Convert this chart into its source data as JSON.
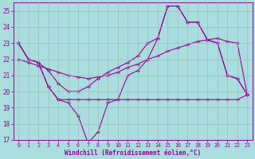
{
  "xlabel": "Windchill (Refroidissement éolien,°C)",
  "bg_color": "#aadddd",
  "grid_color": "#99bbbb",
  "line_color": "#990099",
  "xlim": [
    -0.5,
    23.5
  ],
  "ylim": [
    17,
    25.5
  ],
  "yticks": [
    17,
    18,
    19,
    20,
    21,
    22,
    23,
    24,
    25
  ],
  "xticks": [
    0,
    1,
    2,
    3,
    4,
    5,
    6,
    7,
    8,
    9,
    10,
    11,
    12,
    13,
    14,
    15,
    16,
    17,
    18,
    19,
    20,
    21,
    22,
    23
  ],
  "series_volatile_x": [
    0,
    1,
    2,
    3,
    4,
    5,
    6,
    7,
    8,
    9,
    10,
    11,
    12,
    13,
    14,
    15,
    16,
    17,
    18,
    19,
    20,
    21,
    22,
    23
  ],
  "series_volatile_y": [
    23,
    22,
    21.8,
    20.3,
    19.5,
    19.3,
    18.5,
    16.8,
    17.5,
    19.3,
    19.5,
    21.0,
    21.3,
    22.0,
    23.3,
    25.3,
    25.3,
    24.3,
    24.3,
    23.2,
    23.0,
    21.0,
    20.8,
    19.8
  ],
  "series_peak_x": [
    0,
    1,
    2,
    3,
    4,
    5,
    6,
    7,
    8,
    9,
    10,
    11,
    12,
    13,
    14,
    15,
    16,
    17,
    18,
    19,
    20,
    21,
    22,
    23
  ],
  "series_peak_y": [
    23,
    22,
    21.8,
    21.3,
    20.5,
    20.0,
    20.0,
    20.3,
    20.8,
    21.2,
    21.5,
    21.8,
    22.2,
    23.0,
    23.3,
    25.3,
    25.3,
    24.3,
    24.3,
    23.2,
    23.0,
    21.0,
    20.8,
    19.8
  ],
  "series_trend_x": [
    0,
    1,
    2,
    3,
    4,
    5,
    6,
    7,
    8,
    9,
    10,
    11,
    12,
    13,
    14,
    15,
    16,
    17,
    18,
    19,
    20,
    21,
    22,
    23
  ],
  "series_trend_y": [
    22.0,
    21.8,
    21.6,
    21.4,
    21.2,
    21.0,
    20.9,
    20.8,
    20.9,
    21.0,
    21.2,
    21.5,
    21.7,
    22.0,
    22.2,
    22.5,
    22.7,
    22.9,
    23.1,
    23.2,
    23.3,
    23.1,
    23.0,
    19.8
  ],
  "series_flat_x": [
    0,
    1,
    2,
    3,
    4,
    5,
    6,
    7,
    8,
    9,
    10,
    11,
    12,
    13,
    14,
    15,
    16,
    17,
    18,
    19,
    20,
    21,
    22,
    23
  ],
  "series_flat_y": [
    23,
    22,
    21.8,
    20.3,
    19.5,
    19.5,
    19.5,
    19.5,
    19.5,
    19.5,
    19.5,
    19.5,
    19.5,
    19.5,
    19.5,
    19.5,
    19.5,
    19.5,
    19.5,
    19.5,
    19.5,
    19.5,
    19.5,
    19.8
  ]
}
